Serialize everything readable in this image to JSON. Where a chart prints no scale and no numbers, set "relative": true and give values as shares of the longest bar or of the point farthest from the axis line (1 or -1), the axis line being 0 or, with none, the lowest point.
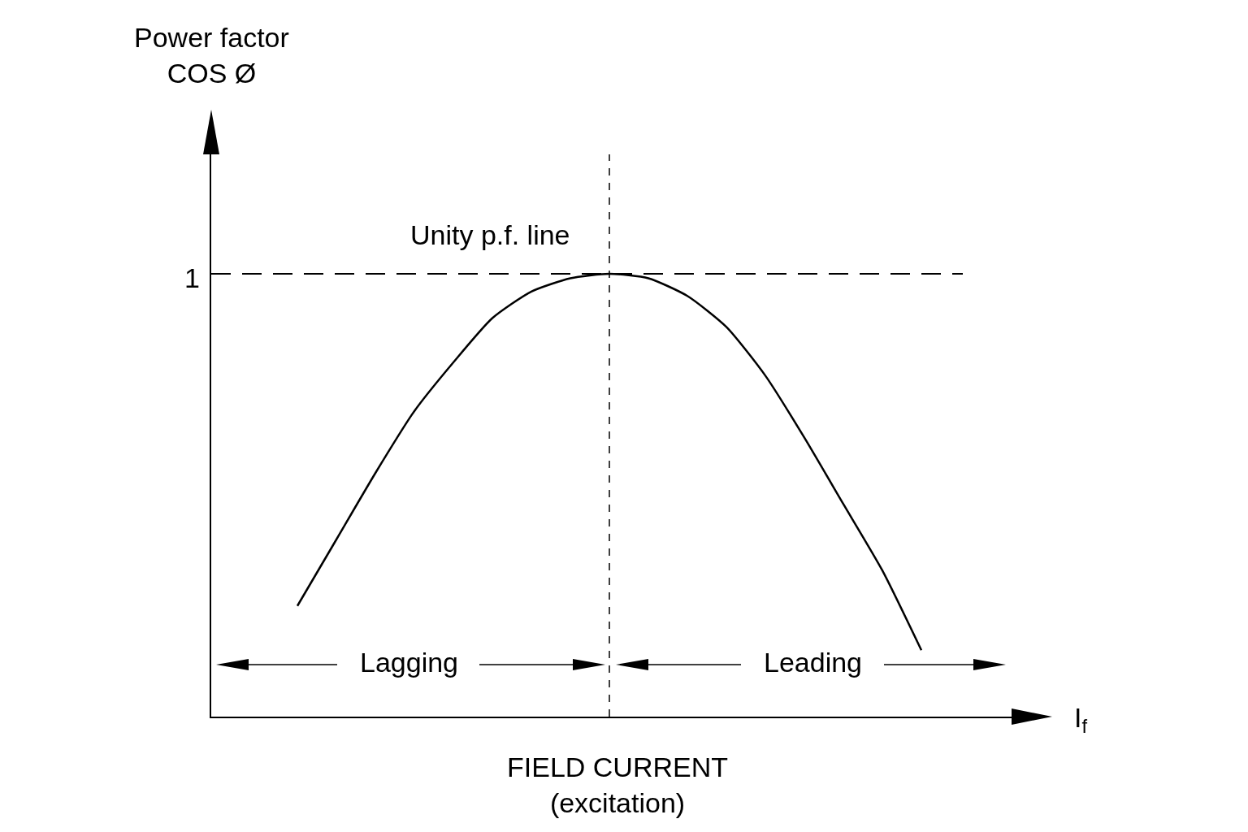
{
  "chart_data": {
    "type": "line",
    "relative": true,
    "xlabel": "FIELD CURRENT\n(excitation)",
    "categories": [
      null,
      null,
      null,
      null,
      null,
      null,
      null,
      null,
      null,
      null,
      null,
      null,
      null,
      null,
      null,
      null,
      null
    ],
    "series": [
      {
        "color": "#000000",
        "values": [
          0.25,
          0.4,
          0.55,
          0.69,
          0.8,
          0.9,
          0.96,
          0.99,
          1,
          0.99,
          0.95,
          0.88,
          0.77,
          0.63,
          0.48,
          0.33,
          0.15
        ]
      }
    ],
    "ref_lines": [
      {
        "axis": "y",
        "value": 1,
        "label": "Unity p.f. line",
        "line_style": "dashed",
        "color": "#000000"
      }
    ],
    "annotations": [
      "Lagging",
      "Leading",
      "I$_{f}$",
      "1",
      "Power factor\nCOS Ø"
    ],
    "marker": "none",
    "line_style": "solid"
  }
}
